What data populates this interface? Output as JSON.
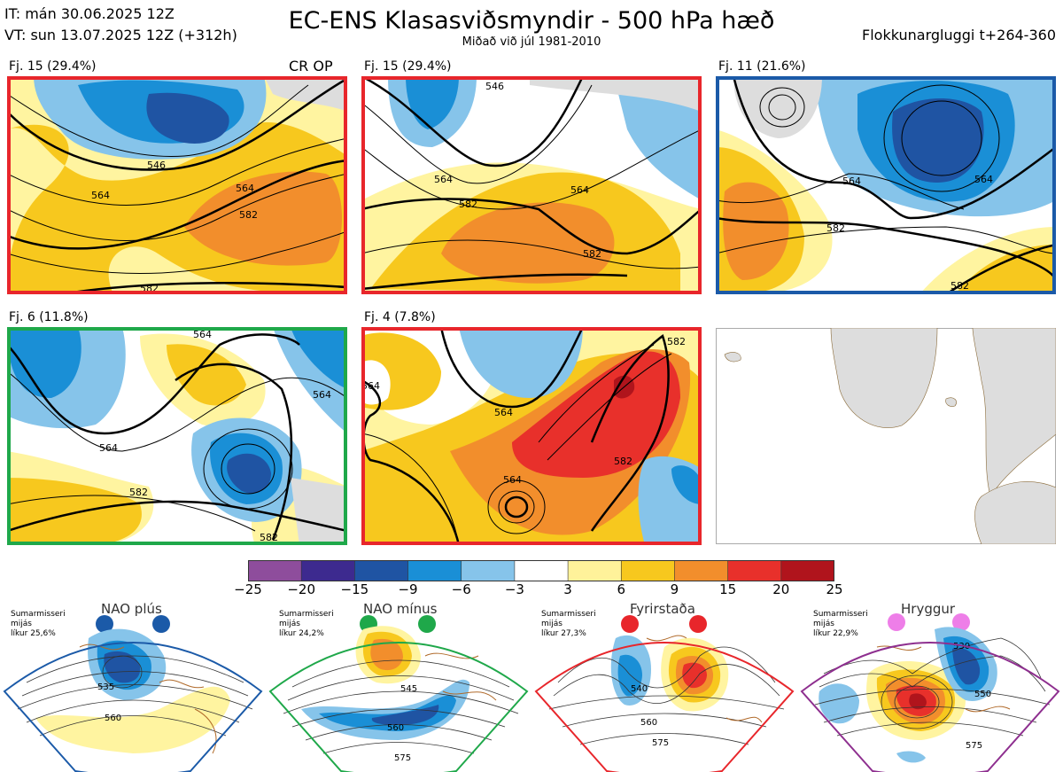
{
  "header": {
    "initial_time": "IT: mán 30.06.2025 12Z",
    "valid_time": "VT: sun 13.07.2025 12Z  (+312h)",
    "title": "EC-ENS Klasasviðsmyndir - 500 hPa hæð",
    "subtitle": "Miðað við júl 1981-2010",
    "cluster_window": "Flokkunargluggi t+264-360"
  },
  "panels": [
    {
      "label": "Fj. 15 (29.4%)",
      "badge": "CR OP",
      "border_color": "#e8262b",
      "contours": [
        "546",
        "564",
        "582",
        "582",
        "564"
      ]
    },
    {
      "label": "Fj. 15 (29.4%)",
      "badge": "",
      "border_color": "#e8262b",
      "contours": [
        "546",
        "564",
        "582",
        "564",
        "582"
      ]
    },
    {
      "label": "Fj. 11 (21.6%)",
      "badge": "",
      "border_color": "#1b5aa8",
      "contours": [
        "564",
        "582",
        "582",
        "564"
      ]
    },
    {
      "label": "Fj. 6 (11.8%)",
      "badge": "",
      "border_color": "#1fa84a",
      "contours": [
        "564",
        "564",
        "582",
        "582",
        "564"
      ]
    },
    {
      "label": "Fj. 4 (7.8%)",
      "badge": "",
      "border_color": "#e8262b",
      "contours": [
        "564",
        "564",
        "582",
        "582",
        "564"
      ]
    },
    {
      "label": "",
      "badge": "",
      "border_color": "#aaaaaa",
      "contours": []
    }
  ],
  "colorbar": {
    "ticks": [
      "−25",
      "−20",
      "−15",
      "−9",
      "−6",
      "−3",
      "3",
      "6",
      "9",
      "15",
      "20",
      "25"
    ],
    "colors": [
      "#8e4d9c",
      "#3d2a8f",
      "#1f54a3",
      "#1a8fd6",
      "#86c4ea",
      "#ffffff",
      "#fff29a",
      "#f7c81e",
      "#f28e2c",
      "#e8302b",
      "#b0141c"
    ]
  },
  "regimes": [
    {
      "name": "NAO plús",
      "info": [
        "Sumarmisseri",
        "mijás",
        "líkur 25,6%"
      ],
      "color": "#1b5aa8",
      "contours": [
        "535",
        "560"
      ]
    },
    {
      "name": "NAO mínus",
      "info": [
        "Sumarmisseri",
        "mijás",
        "líkur 24,2%"
      ],
      "color": "#1fa84a",
      "contours": [
        "545",
        "560",
        "575"
      ]
    },
    {
      "name": "Fyrirstaða",
      "info": [
        "Sumarmisseri",
        "mijás",
        "líkur 27,3%"
      ],
      "color": "#e8262b",
      "contours": [
        "540",
        "560",
        "575"
      ]
    },
    {
      "name": "Hryggur",
      "info": [
        "Sumarmisseri",
        "mijás",
        "líkur 22,9%"
      ],
      "color": "#c0399c",
      "dot_color": "#ee7ee8",
      "contours": [
        "530",
        "550",
        "575"
      ]
    }
  ]
}
